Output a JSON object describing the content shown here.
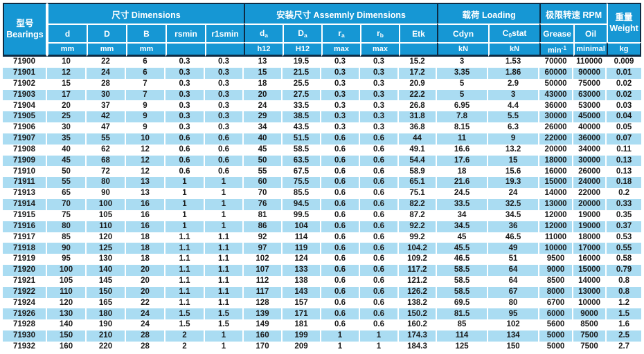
{
  "colors": {
    "header_blue": "#1697d4",
    "row_alt_blue": "#aadcf2",
    "dark_line": "#0e2b43",
    "body_text": "#191919"
  },
  "table": {
    "bearings_header": {
      "zh": "型号",
      "en": "Bearings"
    },
    "groups": [
      {
        "label": "尺寸 Dimensions"
      },
      {
        "label": "安装尺寸 Assemnly Dimensions"
      },
      {
        "label": "载荷 Loading"
      },
      {
        "label": "极限转速 RPM"
      }
    ],
    "weight_header": {
      "zh": "重量",
      "en": "Weight"
    },
    "weight_unit": "kg",
    "columns": [
      {
        "pre": "d",
        "sub": "",
        "post": "",
        "unit": "mm",
        "unit_sup": ""
      },
      {
        "pre": "D",
        "sub": "",
        "post": "",
        "unit": "mm",
        "unit_sup": ""
      },
      {
        "pre": "B",
        "sub": "",
        "post": "",
        "unit": "mm",
        "unit_sup": ""
      },
      {
        "pre": "rsmin",
        "sub": "",
        "post": "",
        "unit": "",
        "unit_sup": ""
      },
      {
        "pre": "r1smin",
        "sub": "",
        "post": "",
        "unit": "",
        "unit_sup": ""
      },
      {
        "pre": "d",
        "sub": "a",
        "post": "",
        "unit": "h12",
        "unit_sup": ""
      },
      {
        "pre": "D",
        "sub": "a",
        "post": "",
        "unit": "H12",
        "unit_sup": ""
      },
      {
        "pre": "r",
        "sub": "a",
        "post": "",
        "unit": "max",
        "unit_sup": ""
      },
      {
        "pre": "r",
        "sub": "b",
        "post": "",
        "unit": "max",
        "unit_sup": ""
      },
      {
        "pre": "Etk",
        "sub": "",
        "post": "",
        "unit": "",
        "unit_sup": ""
      },
      {
        "pre": "Cdyn",
        "sub": "",
        "post": "",
        "unit": "kN",
        "unit_sup": ""
      },
      {
        "pre": "C",
        "sub": "0",
        "post": "stat",
        "unit": "kN",
        "unit_sup": ""
      },
      {
        "pre": "Grease",
        "sub": "",
        "post": "",
        "unit": "min",
        "unit_sup": "-1"
      },
      {
        "pre": "Oil",
        "sub": "",
        "post": "",
        "unit": "minimal",
        "unit_sup": ""
      }
    ],
    "rows": [
      [
        "71900",
        "10",
        "22",
        "6",
        "0.3",
        "0.3",
        "13",
        "19.5",
        "0.3",
        "0.3",
        "15.2",
        "3",
        "1.53",
        "70000",
        "110000",
        "0.009"
      ],
      [
        "71901",
        "12",
        "24",
        "6",
        "0.3",
        "0.3",
        "15",
        "21.5",
        "0.3",
        "0.3",
        "17.2",
        "3.35",
        "1.86",
        "60000",
        "90000",
        "0.01"
      ],
      [
        "71902",
        "15",
        "28",
        "7",
        "0.3",
        "0.3",
        "18",
        "25.5",
        "0.3",
        "0.3",
        "20.9",
        "5",
        "2.9",
        "50000",
        "75000",
        "0.02"
      ],
      [
        "71903",
        "17",
        "30",
        "7",
        "0.3",
        "0.3",
        "20",
        "27.5",
        "0.3",
        "0.3",
        "22.2",
        "5",
        "3",
        "43000",
        "63000",
        "0.02"
      ],
      [
        "71904",
        "20",
        "37",
        "9",
        "0.3",
        "0.3",
        "24",
        "33.5",
        "0.3",
        "0.3",
        "26.8",
        "6.95",
        "4.4",
        "36000",
        "53000",
        "0.03"
      ],
      [
        "71905",
        "25",
        "42",
        "9",
        "0.3",
        "0.3",
        "29",
        "38.5",
        "0.3",
        "0.3",
        "31.8",
        "7.8",
        "5.5",
        "30000",
        "45000",
        "0.04"
      ],
      [
        "71906",
        "30",
        "47",
        "9",
        "0.3",
        "0.3",
        "34",
        "43.5",
        "0.3",
        "0.3",
        "36.8",
        "8.15",
        "6.3",
        "26000",
        "40000",
        "0.05"
      ],
      [
        "71907",
        "35",
        "55",
        "10",
        "0.6",
        "0.6",
        "40",
        "51.5",
        "0.6",
        "0.6",
        "44",
        "11",
        "9",
        "22000",
        "36000",
        "0.07"
      ],
      [
        "71908",
        "40",
        "62",
        "12",
        "0.6",
        "0.6",
        "45",
        "58.5",
        "0.6",
        "0.6",
        "49.1",
        "16.6",
        "13.2",
        "20000",
        "34000",
        "0.11"
      ],
      [
        "71909",
        "45",
        "68",
        "12",
        "0.6",
        "0.6",
        "50",
        "63.5",
        "0.6",
        "0.6",
        "54.4",
        "17.6",
        "15",
        "18000",
        "30000",
        "0.13"
      ],
      [
        "71910",
        "50",
        "72",
        "12",
        "0.6",
        "0.6",
        "55",
        "67.5",
        "0.6",
        "0.6",
        "58.9",
        "18",
        "15.6",
        "16000",
        "26000",
        "0.13"
      ],
      [
        "71911",
        "55",
        "80",
        "13",
        "1",
        "1",
        "60",
        "75.5",
        "0.6",
        "0.6",
        "65.1",
        "21.6",
        "19.3",
        "15000",
        "24000",
        "0.18"
      ],
      [
        "71913",
        "65",
        "90",
        "13",
        "1",
        "1",
        "70",
        "85.5",
        "0.6",
        "0.6",
        "75.1",
        "24.5",
        "24",
        "14000",
        "22000",
        "0.2"
      ],
      [
        "71914",
        "70",
        "100",
        "16",
        "1",
        "1",
        "76",
        "94.5",
        "0.6",
        "0.6",
        "82.2",
        "33.5",
        "32.5",
        "13000",
        "20000",
        "0.33"
      ],
      [
        "71915",
        "75",
        "105",
        "16",
        "1",
        "1",
        "81",
        "99.5",
        "0.6",
        "0.6",
        "87.2",
        "34",
        "34.5",
        "12000",
        "19000",
        "0.35"
      ],
      [
        "71916",
        "80",
        "110",
        "16",
        "1",
        "1",
        "86",
        "104",
        "0.6",
        "0.6",
        "92.2",
        "34.5",
        "36",
        "12000",
        "19000",
        "0.37"
      ],
      [
        "71917",
        "85",
        "120",
        "18",
        "1.1",
        "1.1",
        "92",
        "114",
        "0.6",
        "0.6",
        "99.2",
        "45",
        "46.5",
        "11000",
        "18000",
        "0.53"
      ],
      [
        "71918",
        "90",
        "125",
        "18",
        "1.1",
        "1.1",
        "97",
        "119",
        "0.6",
        "0.6",
        "104.2",
        "45.5",
        "49",
        "10000",
        "17000",
        "0.55"
      ],
      [
        "71919",
        "95",
        "130",
        "18",
        "1.1",
        "1.1",
        "102",
        "124",
        "0.6",
        "0.6",
        "109.2",
        "46.5",
        "51",
        "9500",
        "16000",
        "0.58"
      ],
      [
        "71920",
        "100",
        "140",
        "20",
        "1.1",
        "1.1",
        "107",
        "133",
        "0.6",
        "0.6",
        "117.2",
        "58.5",
        "64",
        "9000",
        "15000",
        "0.79"
      ],
      [
        "71921",
        "105",
        "145",
        "20",
        "1.1",
        "1.1",
        "112",
        "138",
        "0.6",
        "0.6",
        "121.2",
        "58.5",
        "64",
        "8500",
        "14000",
        "0.8"
      ],
      [
        "71922",
        "110",
        "150",
        "20",
        "1.1",
        "1.1",
        "117",
        "143",
        "0.6",
        "0.6",
        "126.2",
        "58.5",
        "67",
        "8000",
        "13000",
        "0.8"
      ],
      [
        "71924",
        "120",
        "165",
        "22",
        "1.1",
        "1.1",
        "128",
        "157",
        "0.6",
        "0.6",
        "138.2",
        "69.5",
        "80",
        "6700",
        "10000",
        "1.2"
      ],
      [
        "71926",
        "130",
        "180",
        "24",
        "1.5",
        "1.5",
        "139",
        "171",
        "0.6",
        "0.6",
        "150.2",
        "81.5",
        "95",
        "6000",
        "9000",
        "1.5"
      ],
      [
        "71928",
        "140",
        "190",
        "24",
        "1.5",
        "1.5",
        "149",
        "181",
        "0.6",
        "0.6",
        "160.2",
        "85",
        "102",
        "5600",
        "8500",
        "1.6"
      ],
      [
        "71930",
        "150",
        "210",
        "28",
        "2",
        "1",
        "160",
        "199",
        "1",
        "1",
        "174.3",
        "114",
        "134",
        "5000",
        "7500",
        "2.5"
      ],
      [
        "71932",
        "160",
        "220",
        "28",
        "2",
        "1",
        "170",
        "209",
        "1",
        "1",
        "184.3",
        "125",
        "150",
        "5000",
        "7500",
        "2.7"
      ]
    ]
  }
}
